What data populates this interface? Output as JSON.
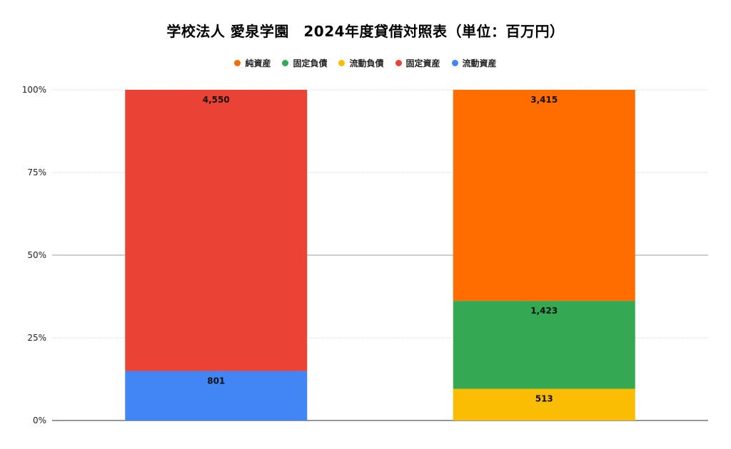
{
  "chart_data": {
    "type": "bar",
    "stacked": "percent",
    "title": "学校法人 愛泉学園　2024年度貸借対照表（単位：百万円）",
    "legend_position": "top",
    "legend": [
      {
        "name": "純資産",
        "color": "#FF6D01"
      },
      {
        "name": "固定負債",
        "color": "#34A853"
      },
      {
        "name": "流動負債",
        "color": "#FBBC04"
      },
      {
        "name": "固定資産",
        "color": "#EA4335"
      },
      {
        "name": "流動資産",
        "color": "#4285F4"
      }
    ],
    "categories": [
      "",
      ""
    ],
    "series": [
      {
        "name": "流動資産",
        "color": "#4285F4",
        "values": [
          801,
          null
        ]
      },
      {
        "name": "固定資産",
        "color": "#EA4335",
        "values": [
          4550,
          null
        ]
      },
      {
        "name": "流動負債",
        "color": "#FBBC04",
        "values": [
          null,
          513
        ]
      },
      {
        "name": "固定負債",
        "color": "#34A853",
        "values": [
          null,
          1423
        ]
      },
      {
        "name": "純資産",
        "color": "#FF6D01",
        "values": [
          null,
          3415
        ]
      }
    ],
    "data_labels": [
      [
        "801",
        "4,550"
      ],
      [
        "513",
        "1,423",
        "3,415"
      ]
    ],
    "y_ticks": [
      "0%",
      "25%",
      "50%",
      "75%",
      "100%"
    ],
    "ylim": [
      0,
      100
    ],
    "grid": true
  }
}
